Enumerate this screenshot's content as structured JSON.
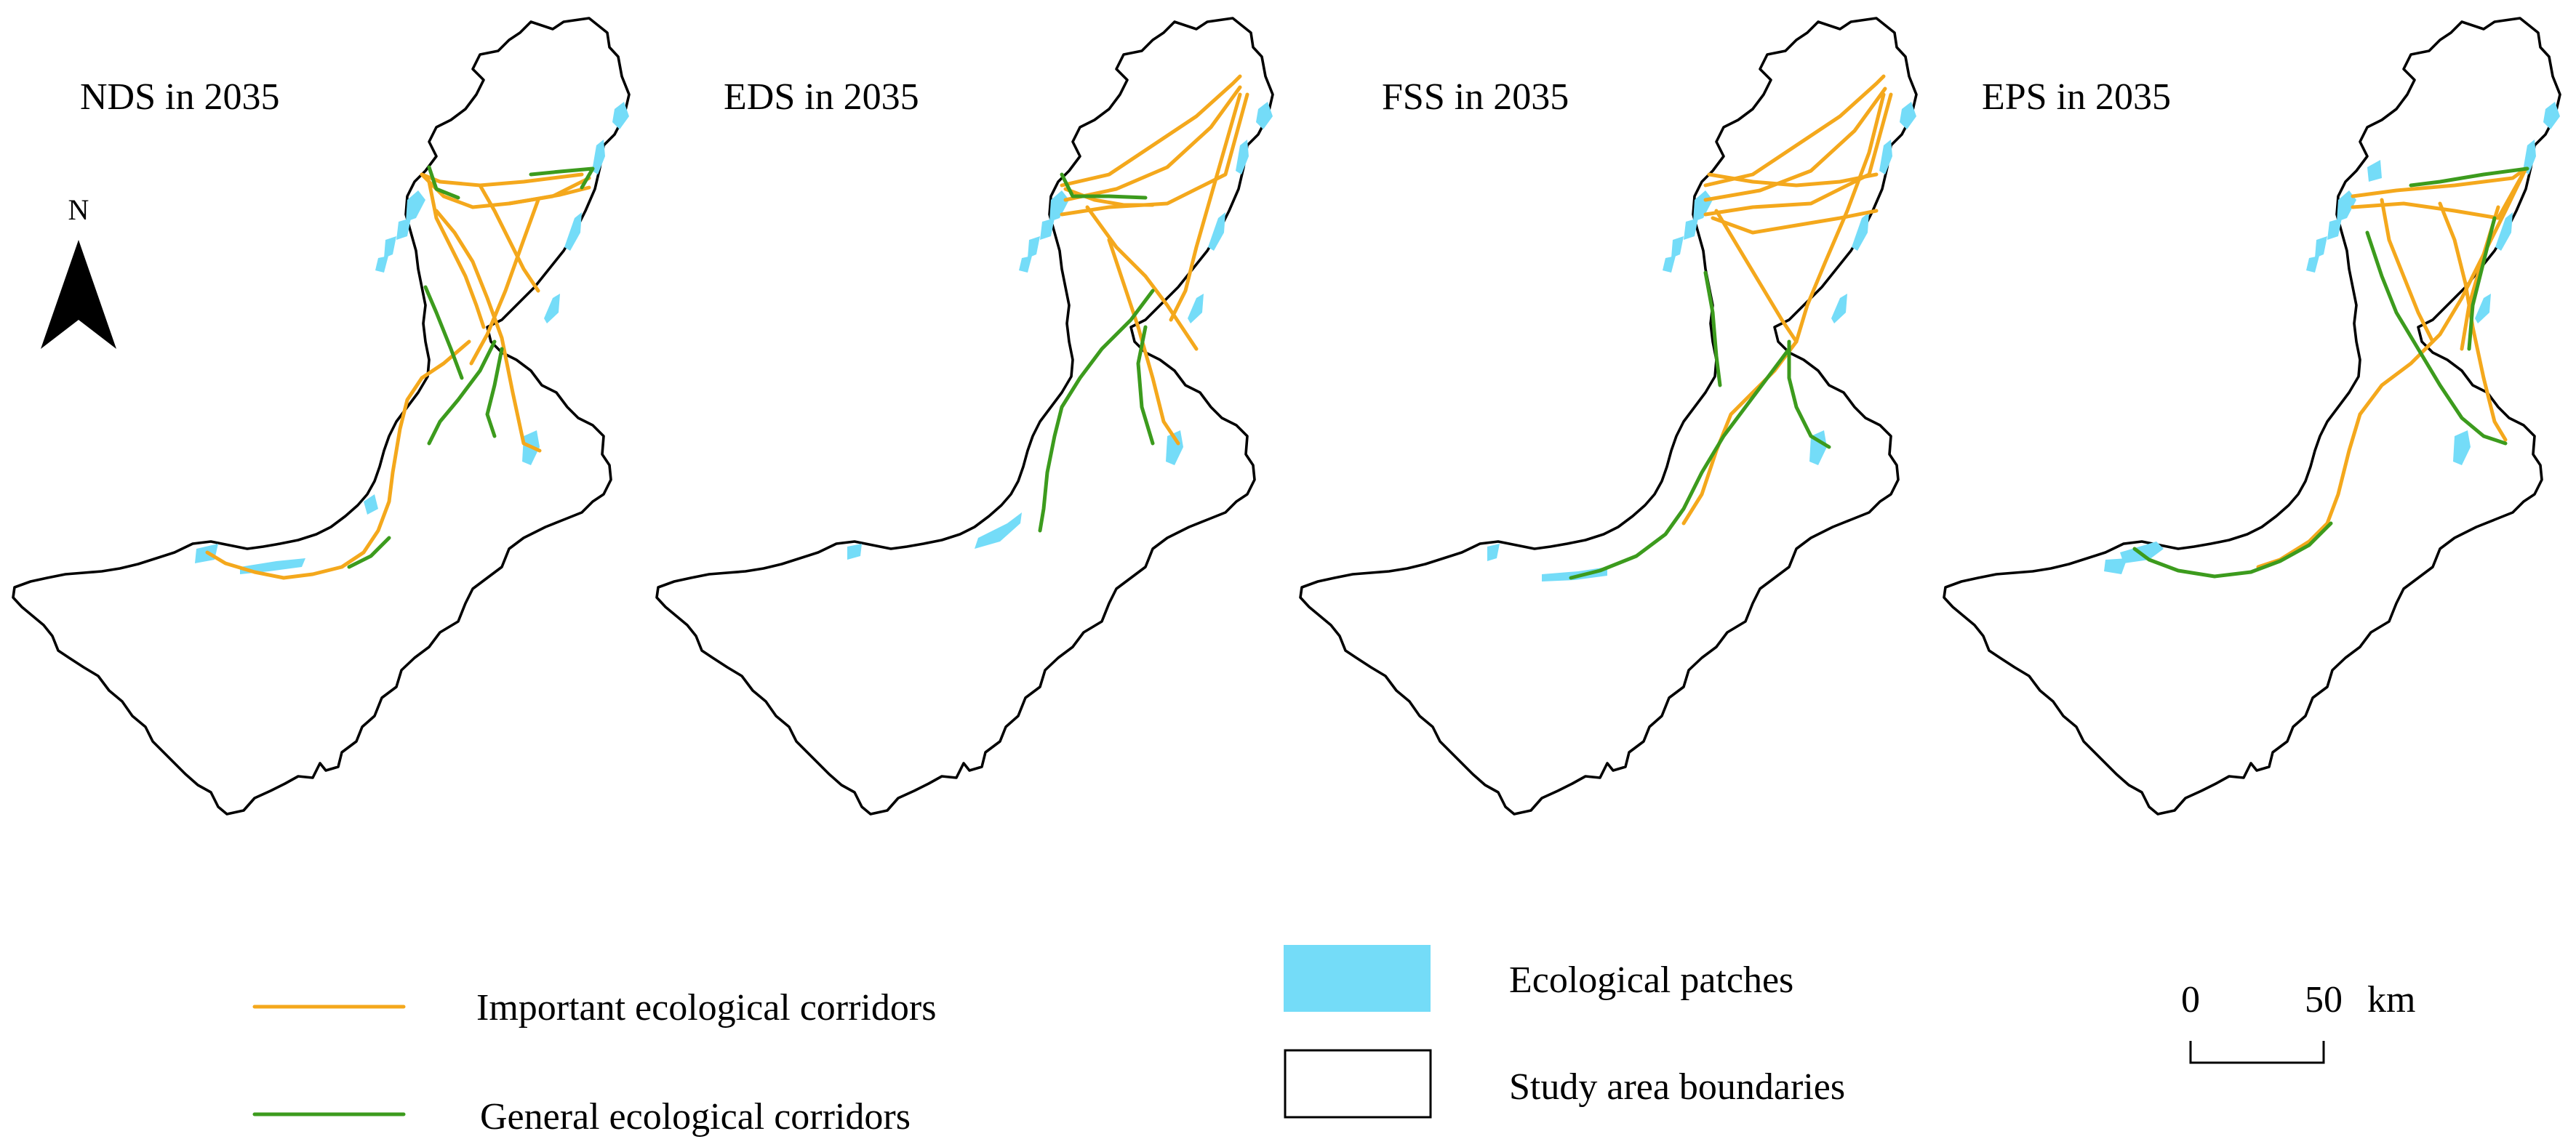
{
  "panels": [
    {
      "id": "nds",
      "title": "NDS in 2035"
    },
    {
      "id": "eds",
      "title": "EDS in 2035"
    },
    {
      "id": "fss",
      "title": "FSS in 2035"
    },
    {
      "id": "eps",
      "title": "EPS in 2035"
    }
  ],
  "north_arrow": {
    "label": "N"
  },
  "legend": {
    "important": "Important ecological corridors",
    "general": "General ecological corridors",
    "patches": "Ecological patches",
    "boundary": "Study area boundaries"
  },
  "scale_bar": {
    "start": "0",
    "end": "50",
    "unit": "km"
  },
  "colors": {
    "important": "#f4a81c",
    "general": "#3c9b1d",
    "patches": "#74dcf8",
    "boundary": "#000000"
  }
}
